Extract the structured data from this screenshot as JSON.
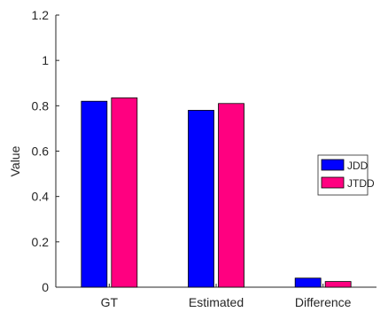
{
  "chart_data": {
    "type": "bar",
    "categories": [
      "GT",
      "Estimated",
      "Difference"
    ],
    "series": [
      {
        "name": "JDD",
        "values": [
          0.82,
          0.78,
          0.04
        ],
        "color": "#0000ff"
      },
      {
        "name": "JTDD",
        "values": [
          0.835,
          0.81,
          0.025
        ],
        "color": "#ff0080"
      }
    ],
    "ylabel": "Value",
    "xlabel": "",
    "ylim": [
      0,
      1.2
    ],
    "yticks": [
      "0",
      "0.2",
      "0.4",
      "0.6",
      "0.8",
      "1",
      "1.2"
    ],
    "grid": false,
    "legend_position": "right"
  }
}
